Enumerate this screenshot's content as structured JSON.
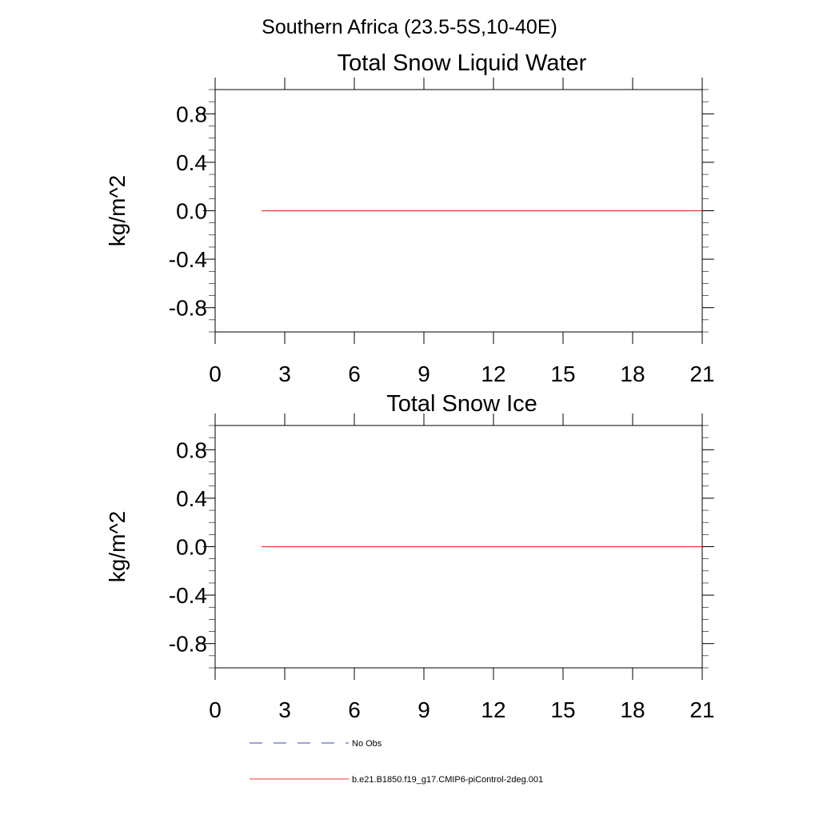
{
  "figure": {
    "title": "Southern Africa (23.5-5S,10-40E)"
  },
  "colors": {
    "model_line": "#e8343a",
    "obs_line": "#3b4a9e",
    "axes": "#000000"
  },
  "chart_data": [
    {
      "type": "line",
      "title": "Total Snow Liquid Water",
      "xlabel": "",
      "ylabel": "kg/m^2",
      "xlim": [
        0,
        21
      ],
      "ylim": [
        -1.0,
        1.0
      ],
      "xticks": [
        0,
        3,
        6,
        9,
        12,
        15,
        18,
        21
      ],
      "yticks": [
        0.8,
        0.4,
        0.0,
        -0.4,
        -0.8
      ],
      "xtick_labels": [
        "0",
        "3",
        "6",
        "9",
        "12",
        "15",
        "18",
        "21"
      ],
      "ytick_labels": [
        "0.8",
        "0.4",
        "0.0",
        "-0.4",
        "-0.8"
      ],
      "grid": false,
      "series": [
        {
          "name": "b.e21.B1850.f19_g17.CMIP6-piControl-2deg.001",
          "x": [
            2,
            21
          ],
          "y": [
            0.0,
            0.0
          ]
        }
      ]
    },
    {
      "type": "line",
      "title": "Total Snow Ice",
      "xlabel": "",
      "ylabel": "kg/m^2",
      "xlim": [
        0,
        21
      ],
      "ylim": [
        -1.0,
        1.0
      ],
      "xticks": [
        0,
        3,
        6,
        9,
        12,
        15,
        18,
        21
      ],
      "yticks": [
        0.8,
        0.4,
        0.0,
        -0.4,
        -0.8
      ],
      "xtick_labels": [
        "0",
        "3",
        "6",
        "9",
        "12",
        "15",
        "18",
        "21"
      ],
      "ytick_labels": [
        "0.8",
        "0.4",
        "0.0",
        "-0.4",
        "-0.8"
      ],
      "grid": false,
      "series": [
        {
          "name": "b.e21.B1850.f19_g17.CMIP6-piControl-2deg.001",
          "x": [
            2,
            21
          ],
          "y": [
            0.0,
            0.0
          ]
        }
      ]
    }
  ],
  "legend": {
    "placement": "bottom",
    "entries": [
      {
        "label": "No Obs",
        "style": "dashed"
      },
      {
        "label": "b.e21.B1850.f19_g17.CMIP6-piControl-2deg.001",
        "style": "solid"
      }
    ]
  }
}
